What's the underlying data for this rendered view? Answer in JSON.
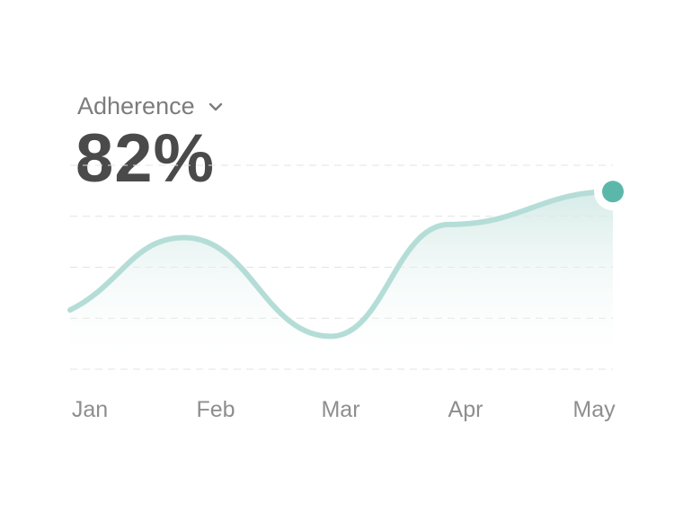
{
  "header": {
    "metric_label": "Adherence",
    "metric_value": "82%"
  },
  "icons": {
    "dropdown": "chevron-down-icon"
  },
  "colors": {
    "line": "#b5ddd7",
    "area_top": "#cfe8e4",
    "marker": "#5cb7ab",
    "grid": "#e3e3e3",
    "text_muted": "#8e8e8e",
    "value_text": "#4a4a4a"
  },
  "chart_data": {
    "type": "area",
    "categories": [
      "Jan",
      "Feb",
      "Mar",
      "Apr",
      "May"
    ],
    "series": [
      {
        "values": [
          64,
          75,
          60,
          77,
          82
        ],
        "highlight_last_point": true
      }
    ],
    "ylim": [
      55,
      86
    ],
    "grid": "horizontal-dashed",
    "legend": "none"
  }
}
